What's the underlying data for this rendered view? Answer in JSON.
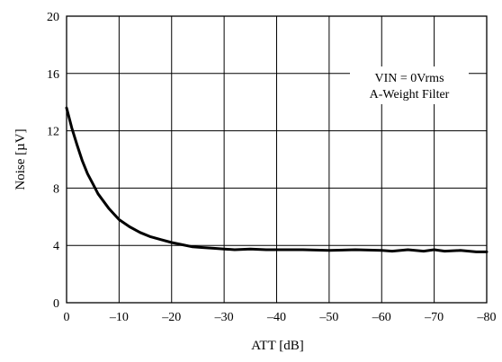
{
  "chart_data": {
    "type": "line",
    "title": "",
    "xlabel": "ATT [dB]",
    "ylabel": "Noise [µV]",
    "xlim": [
      0,
      -80
    ],
    "ylim": [
      0,
      20
    ],
    "xticks": [
      0,
      -10,
      -20,
      -30,
      -40,
      -50,
      -60,
      -70,
      -80
    ],
    "yticks": [
      0,
      4,
      8,
      12,
      16,
      20
    ],
    "xtick_labels": [
      "0",
      "–10",
      "–20",
      "–30",
      "–40",
      "–50",
      "–60",
      "–70",
      "–80"
    ],
    "ytick_labels": [
      "0",
      "4",
      "8",
      "12",
      "16",
      "20"
    ],
    "grid": true,
    "annotations": [
      "VIN = 0Vrms",
      "A-Weight Filter"
    ],
    "series": [
      {
        "x": [
          0,
          -1,
          -2,
          -3,
          -4,
          -5,
          -6,
          -7,
          -8,
          -9,
          -10,
          -12,
          -14,
          -16,
          -18,
          -20,
          -22,
          -24,
          -26,
          -28,
          -30,
          -32,
          -35,
          -38,
          -40,
          -45,
          -50,
          -55,
          -60,
          -62,
          -65,
          -68,
          -70,
          -72,
          -75,
          -78,
          -80
        ],
        "y": [
          13.6,
          12.2,
          11.0,
          9.9,
          9.0,
          8.3,
          7.6,
          7.1,
          6.6,
          6.2,
          5.8,
          5.3,
          4.9,
          4.6,
          4.4,
          4.2,
          4.05,
          3.9,
          3.85,
          3.8,
          3.75,
          3.7,
          3.75,
          3.7,
          3.7,
          3.7,
          3.65,
          3.7,
          3.65,
          3.6,
          3.7,
          3.6,
          3.7,
          3.6,
          3.65,
          3.55,
          3.55
        ]
      }
    ]
  }
}
